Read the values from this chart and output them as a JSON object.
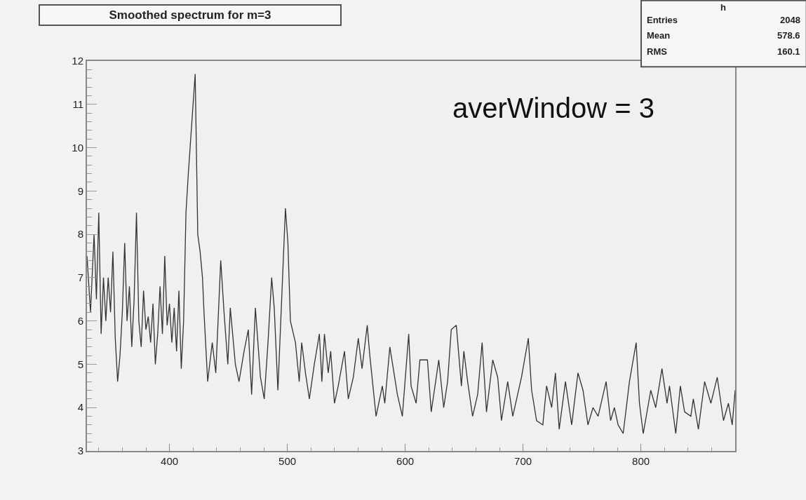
{
  "chart_data": {
    "type": "line",
    "title": "Smoothed spectrum for m=3",
    "annotations": [
      "h",
      "Entries",
      "2048",
      "Mean",
      "578.6",
      "RMS",
      "160.1",
      "averWindow = 3"
    ],
    "x": [
      330,
      333,
      336,
      338,
      340,
      342,
      344,
      346,
      348,
      350,
      352,
      354,
      356,
      358,
      360,
      362,
      364,
      366,
      368,
      370,
      372,
      374,
      376,
      378,
      380,
      382,
      384,
      386,
      388,
      390,
      392,
      394,
      396,
      398,
      400,
      402,
      404,
      406,
      408,
      410,
      412,
      414,
      416,
      418,
      421.8,
      424,
      426,
      428,
      429.3,
      432.4,
      436.3,
      439.3,
      443.5,
      446.3,
      449.5,
      451.6,
      455.9,
      459,
      463.3,
      466.9,
      469.7,
      472.9,
      477.2,
      480.4,
      483.6,
      486.7,
      488.9,
      492,
      495.2,
      498.4,
      500.5,
      502.6,
      506.9,
      510.1,
      512.2,
      515.4,
      518.7,
      522.9,
      527.2,
      529.3,
      531.5,
      534.7,
      536.8,
      540,
      543.2,
      548.5,
      551.7,
      556,
      560.2,
      563.4,
      567.8,
      570,
      575.3,
      580.6,
      582.7,
      587,
      593.4,
      597.6,
      603,
      605,
      609.3,
      612.5,
      618.9,
      622.1,
      628.5,
      632.7,
      636,
      639.1,
      643.4,
      647.7,
      649.8,
      653,
      657.2,
      661.5,
      665.3,
      669,
      674.3,
      678.5,
      681.7,
      687,
      691.3,
      698.7,
      704.5,
      707.3,
      711.5,
      716.8,
      720,
      724.3,
      727.5,
      730.7,
      736,
      741.3,
      746.6,
      750.9,
      755.1,
      759.4,
      763.7,
      770.5,
      774.3,
      777.5,
      780.7,
      785,
      790.3,
      796,
      798.8,
      802,
      808.4,
      812.6,
      817.9,
      822.2,
      824.3,
      829.6,
      833.5,
      837.1,
      842.4,
      844.5,
      848.8,
      854.1,
      859.4,
      864.8,
      870.1,
      874.3,
      877.5,
      880
    ],
    "series": [
      {
        "color": "#333333",
        "values": [
          7.5,
          6.2,
          8.0,
          6.5,
          8.5,
          5.7,
          7.0,
          6.0,
          7.0,
          6.2,
          7.6,
          5.6,
          4.6,
          5.2,
          6.2,
          7.8,
          6.0,
          6.8,
          5.4,
          6.5,
          8.5,
          6.0,
          5.4,
          6.7,
          5.8,
          6.1,
          5.5,
          6.4,
          5.0,
          5.7,
          6.8,
          5.7,
          7.5,
          5.9,
          6.4,
          5.5,
          6.3,
          5.3,
          6.7,
          4.9,
          6.0,
          8.5,
          9.4,
          10.2,
          11.7,
          8.0,
          7.6,
          7.0,
          6.2,
          4.6,
          5.5,
          4.8,
          7.4,
          6.2,
          5.0,
          6.3,
          5.0,
          4.6,
          5.3,
          5.8,
          4.3,
          6.3,
          4.7,
          4.2,
          5.5,
          7.0,
          6.3,
          4.4,
          6.5,
          8.6,
          7.8,
          6.0,
          5.5,
          4.6,
          5.5,
          4.8,
          4.2,
          5.0,
          5.7,
          4.6,
          5.7,
          4.8,
          5.3,
          4.1,
          4.5,
          5.3,
          4.2,
          4.7,
          5.6,
          4.9,
          5.9,
          5.2,
          3.8,
          4.5,
          4.1,
          5.4,
          4.3,
          3.8,
          5.7,
          4.5,
          4.1,
          5.1,
          5.1,
          3.9,
          5.1,
          4.0,
          4.6,
          5.8,
          5.9,
          4.5,
          5.3,
          4.6,
          3.8,
          4.3,
          5.5,
          3.9,
          5.1,
          4.7,
          3.7,
          4.6,
          3.8,
          4.7,
          5.6,
          4.4,
          3.7,
          3.6,
          4.5,
          4.0,
          4.8,
          3.5,
          4.6,
          3.6,
          4.8,
          4.4,
          3.6,
          4.0,
          3.8,
          4.6,
          3.7,
          4.0,
          3.6,
          3.4,
          4.6,
          5.5,
          4.1,
          3.4,
          4.4,
          4.0,
          4.9,
          4.1,
          4.5,
          3.4,
          4.5,
          3.9,
          3.8,
          4.2,
          3.5,
          4.6,
          4.1,
          4.7,
          3.7,
          4.1,
          3.6,
          4.4
        ]
      }
    ],
    "xlim": [
      330,
      880
    ],
    "ylim": [
      3,
      12
    ],
    "xticks": [
      400,
      500,
      600,
      700,
      800
    ],
    "yticks": [
      3,
      4,
      5,
      6,
      7,
      8,
      9,
      10,
      11,
      12
    ],
    "grid": false,
    "marker": "none",
    "line_style": "solid"
  }
}
